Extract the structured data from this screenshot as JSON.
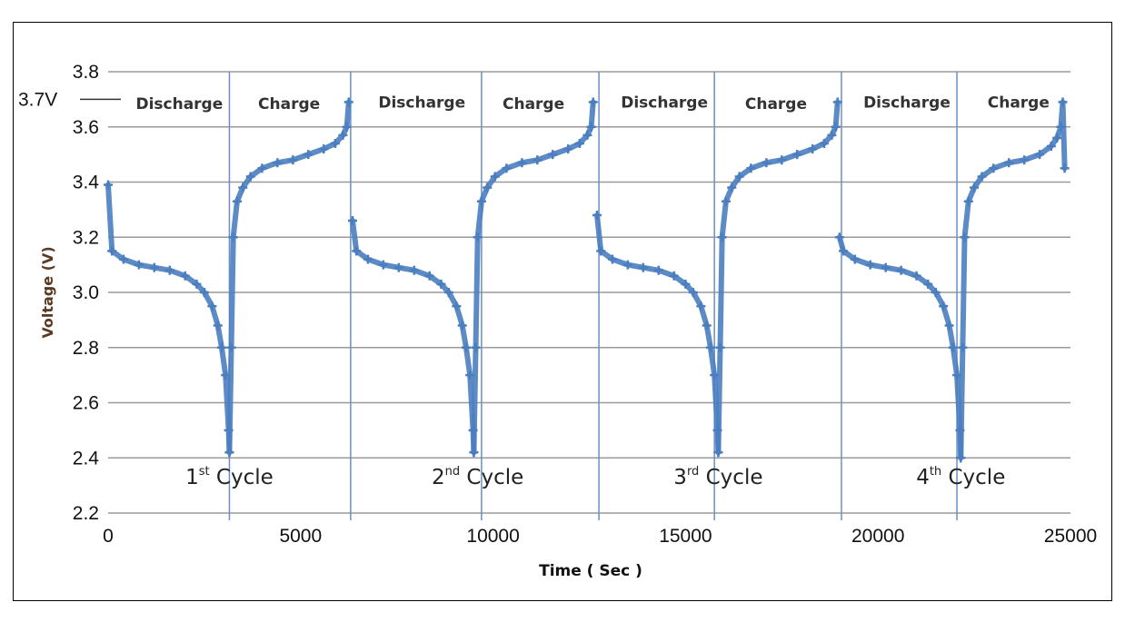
{
  "chart_data": {
    "type": "scatter",
    "title": "",
    "xlabel": "Time ( Sec )",
    "ylabel": "Voltage (V)",
    "xlim": [
      0,
      25000
    ],
    "ylim": [
      2.2,
      3.8
    ],
    "x_ticks": [
      "0",
      "5000",
      "10000",
      "15000",
      "20000",
      "25000"
    ],
    "y_ticks": [
      "2.2",
      "2.4",
      "2.6",
      "2.8",
      "3.0",
      "3.2",
      "3.4",
      "3.6",
      "3.8"
    ],
    "grid": "horizontal",
    "series_color": "#4a7ebf",
    "reference_line": {
      "label": "3.7V",
      "y": 3.7
    },
    "separators_x": [
      3150,
      6300,
      9700,
      12750,
      15750,
      19050,
      22050
    ],
    "phase_labels": [
      {
        "text": "Discharge",
        "x": 1850,
        "y": 3.665
      },
      {
        "text": "Charge",
        "x": 4700,
        "y": 3.665
      },
      {
        "text": "Discharge",
        "x": 8150,
        "y": 3.67
      },
      {
        "text": "Charge",
        "x": 11050,
        "y": 3.665
      },
      {
        "text": "Discharge",
        "x": 14450,
        "y": 3.67
      },
      {
        "text": "Charge",
        "x": 17350,
        "y": 3.665
      },
      {
        "text": "Discharge",
        "x": 20750,
        "y": 3.67
      },
      {
        "text": "Charge",
        "x": 23650,
        "y": 3.67
      }
    ],
    "cycle_labels": [
      {
        "num": "1",
        "sup": "st",
        "rest": " Cycle",
        "x": 3150,
        "y": 2.305
      },
      {
        "num": "2",
        "sup": "nd",
        "rest": " Cycle",
        "x": 9600,
        "y": 2.305
      },
      {
        "num": "3",
        "sup": "rd",
        "rest": " Cycle",
        "x": 15850,
        "y": 2.305
      },
      {
        "num": "4",
        "sup": "th",
        "rest": " Cycle",
        "x": 22150,
        "y": 2.305
      }
    ],
    "cycles": [
      {
        "discharge_x": [
          0,
          100,
          400,
          800,
          1200,
          1600,
          2000,
          2300,
          2500,
          2700,
          2850,
          2950,
          3050,
          3130,
          3150
        ],
        "discharge_y": [
          3.39,
          3.15,
          3.12,
          3.1,
          3.09,
          3.08,
          3.06,
          3.03,
          3.0,
          2.95,
          2.88,
          2.8,
          2.7,
          2.5,
          2.42
        ],
        "charge_x": [
          3150,
          3200,
          3250,
          3350,
          3500,
          3700,
          4000,
          4400,
          4800,
          5200,
          5600,
          5900,
          6100,
          6200,
          6250
        ],
        "charge_y": [
          2.42,
          2.8,
          3.2,
          3.33,
          3.38,
          3.42,
          3.45,
          3.47,
          3.48,
          3.5,
          3.52,
          3.54,
          3.57,
          3.6,
          3.69
        ]
      },
      {
        "discharge_x": [
          6350,
          6450,
          6750,
          7150,
          7550,
          7950,
          8350,
          8650,
          8850,
          9050,
          9200,
          9300,
          9400,
          9480,
          9500
        ],
        "discharge_y": [
          3.26,
          3.15,
          3.12,
          3.1,
          3.09,
          3.08,
          3.06,
          3.03,
          3.0,
          2.95,
          2.88,
          2.8,
          2.7,
          2.5,
          2.42
        ],
        "charge_x": [
          9500,
          9550,
          9600,
          9700,
          9850,
          10050,
          10350,
          10750,
          11150,
          11550,
          11950,
          12250,
          12450,
          12550,
          12600
        ],
        "charge_y": [
          2.42,
          2.8,
          3.2,
          3.33,
          3.38,
          3.42,
          3.45,
          3.47,
          3.48,
          3.5,
          3.52,
          3.54,
          3.57,
          3.6,
          3.69
        ]
      },
      {
        "discharge_x": [
          12700,
          12800,
          13100,
          13500,
          13900,
          14300,
          14700,
          15000,
          15200,
          15400,
          15550,
          15650,
          15750,
          15830,
          15850
        ],
        "discharge_y": [
          3.28,
          3.15,
          3.12,
          3.1,
          3.09,
          3.08,
          3.06,
          3.03,
          3.0,
          2.95,
          2.88,
          2.8,
          2.7,
          2.5,
          2.42
        ],
        "charge_x": [
          15850,
          15900,
          15950,
          16050,
          16200,
          16400,
          16700,
          17100,
          17500,
          17900,
          18300,
          18600,
          18800,
          18900,
          18950
        ],
        "charge_y": [
          2.42,
          2.8,
          3.2,
          3.33,
          3.38,
          3.42,
          3.45,
          3.47,
          3.48,
          3.5,
          3.52,
          3.54,
          3.57,
          3.6,
          3.69
        ]
      },
      {
        "discharge_x": [
          19000,
          19100,
          19400,
          19800,
          20200,
          20600,
          21000,
          21300,
          21500,
          21700,
          21850,
          21950,
          22050,
          22130,
          22150
        ],
        "discharge_y": [
          3.2,
          3.15,
          3.12,
          3.1,
          3.09,
          3.08,
          3.06,
          3.03,
          3.0,
          2.95,
          2.88,
          2.8,
          2.7,
          2.5,
          2.4
        ],
        "charge_x": [
          22150,
          22200,
          22250,
          22350,
          22500,
          22700,
          23000,
          23400,
          23800,
          24200,
          24500,
          24650,
          24750,
          24800,
          24850
        ],
        "charge_y": [
          2.4,
          2.8,
          3.2,
          3.33,
          3.38,
          3.42,
          3.45,
          3.47,
          3.48,
          3.5,
          3.53,
          3.56,
          3.6,
          3.69,
          3.45
        ]
      }
    ]
  }
}
